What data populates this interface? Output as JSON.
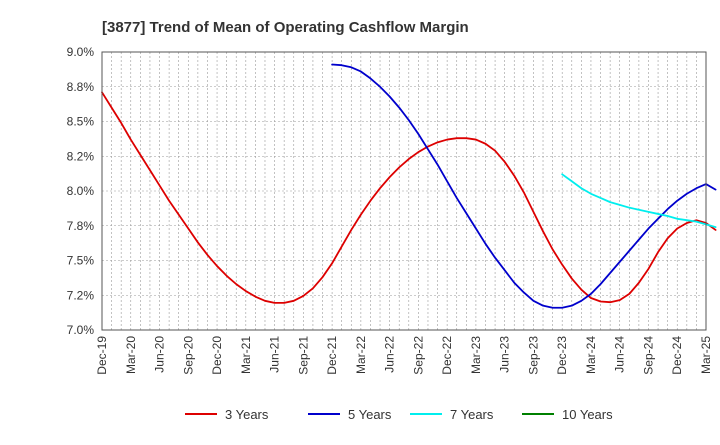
{
  "chart_data": {
    "type": "line",
    "title": "[3877]  Trend of Mean of Operating Cashflow Margin",
    "xlabel": "",
    "ylabel": "",
    "x_ticks": [
      "Dec-19",
      "Mar-20",
      "Jun-20",
      "Sep-20",
      "Dec-20",
      "Mar-21",
      "Jun-21",
      "Sep-21",
      "Dec-21",
      "Mar-22",
      "Jun-22",
      "Sep-22",
      "Dec-22",
      "Mar-23",
      "Jun-23",
      "Sep-23",
      "Dec-23",
      "Mar-24",
      "Jun-24",
      "Sep-24",
      "Dec-24",
      "Mar-25"
    ],
    "y_ticks": [
      "7.0%",
      "7.2%",
      "7.5%",
      "7.8%",
      "8.0%",
      "8.2%",
      "8.5%",
      "8.8%",
      "9.0%"
    ],
    "ylim": [
      7.0,
      9.0
    ],
    "grid": true,
    "legend_position": "bottom",
    "series": [
      {
        "name": "3 Years",
        "color": "#dd0000",
        "points": [
          [
            "Dec-19",
            8.71
          ],
          [
            "Jan-20",
            8.6
          ],
          [
            "Feb-20",
            8.49
          ],
          [
            "Mar-20",
            8.37
          ],
          [
            "Apr-20",
            8.26
          ],
          [
            "May-20",
            8.15
          ],
          [
            "Jun-20",
            8.04
          ],
          [
            "Jul-20",
            7.93
          ],
          [
            "Aug-20",
            7.83
          ],
          [
            "Sep-20",
            7.73
          ],
          [
            "Oct-20",
            7.63
          ],
          [
            "Nov-20",
            7.54
          ],
          [
            "Dec-20",
            7.46
          ],
          [
            "Jan-21",
            7.39
          ],
          [
            "Feb-21",
            7.33
          ],
          [
            "Mar-21",
            7.28
          ],
          [
            "Apr-21",
            7.24
          ],
          [
            "May-21",
            7.21
          ],
          [
            "Jun-21",
            7.195
          ],
          [
            "Jul-21",
            7.195
          ],
          [
            "Aug-21",
            7.21
          ],
          [
            "Sep-21",
            7.245
          ],
          [
            "Oct-21",
            7.3
          ],
          [
            "Nov-21",
            7.38
          ],
          [
            "Dec-21",
            7.48
          ],
          [
            "Jan-22",
            7.6
          ],
          [
            "Feb-22",
            7.72
          ],
          [
            "Mar-22",
            7.83
          ],
          [
            "Apr-22",
            7.93
          ],
          [
            "May-22",
            8.02
          ],
          [
            "Jun-22",
            8.1
          ],
          [
            "Jul-22",
            8.17
          ],
          [
            "Aug-22",
            8.23
          ],
          [
            "Sep-22",
            8.28
          ],
          [
            "Oct-22",
            8.32
          ],
          [
            "Nov-22",
            8.35
          ],
          [
            "Dec-22",
            8.37
          ],
          [
            "Jan-23",
            8.38
          ],
          [
            "Feb-23",
            8.38
          ],
          [
            "Mar-23",
            8.37
          ],
          [
            "Apr-23",
            8.34
          ],
          [
            "May-23",
            8.29
          ],
          [
            "Jun-23",
            8.21
          ],
          [
            "Jul-23",
            8.11
          ],
          [
            "Aug-23",
            7.99
          ],
          [
            "Sep-23",
            7.85
          ],
          [
            "Oct-23",
            7.71
          ],
          [
            "Nov-23",
            7.58
          ],
          [
            "Dec-23",
            7.47
          ],
          [
            "Jan-24",
            7.37
          ],
          [
            "Feb-24",
            7.29
          ],
          [
            "Mar-24",
            7.23
          ],
          [
            "Apr-24",
            7.205
          ],
          [
            "May-24",
            7.2
          ],
          [
            "Jun-24",
            7.215
          ],
          [
            "Jul-24",
            7.26
          ],
          [
            "Aug-24",
            7.34
          ],
          [
            "Sep-24",
            7.44
          ],
          [
            "Oct-24",
            7.56
          ],
          [
            "Nov-24",
            7.66
          ],
          [
            "Dec-24",
            7.73
          ],
          [
            "Jan-25",
            7.77
          ],
          [
            "Feb-25",
            7.79
          ],
          [
            "Mar-25",
            7.77
          ],
          [
            "Apr-25",
            7.72
          ]
        ]
      },
      {
        "name": "5 Years",
        "color": "#0000cc",
        "points": [
          [
            "Dec-21",
            8.91
          ],
          [
            "Jan-22",
            8.905
          ],
          [
            "Feb-22",
            8.89
          ],
          [
            "Mar-22",
            8.86
          ],
          [
            "Apr-22",
            8.81
          ],
          [
            "May-22",
            8.75
          ],
          [
            "Jun-22",
            8.68
          ],
          [
            "Jul-22",
            8.6
          ],
          [
            "Aug-22",
            8.51
          ],
          [
            "Sep-22",
            8.41
          ],
          [
            "Oct-22",
            8.3
          ],
          [
            "Nov-22",
            8.19
          ],
          [
            "Dec-22",
            8.07
          ],
          [
            "Jan-23",
            7.95
          ],
          [
            "Feb-23",
            7.84
          ],
          [
            "Mar-23",
            7.73
          ],
          [
            "Apr-23",
            7.62
          ],
          [
            "May-23",
            7.52
          ],
          [
            "Jun-23",
            7.43
          ],
          [
            "Jul-23",
            7.34
          ],
          [
            "Aug-23",
            7.27
          ],
          [
            "Sep-23",
            7.21
          ],
          [
            "Oct-23",
            7.175
          ],
          [
            "Nov-23",
            7.16
          ],
          [
            "Dec-23",
            7.16
          ],
          [
            "Jan-24",
            7.175
          ],
          [
            "Feb-24",
            7.21
          ],
          [
            "Mar-24",
            7.26
          ],
          [
            "Apr-24",
            7.33
          ],
          [
            "May-24",
            7.41
          ],
          [
            "Jun-24",
            7.49
          ],
          [
            "Jul-24",
            7.57
          ],
          [
            "Aug-24",
            7.65
          ],
          [
            "Sep-24",
            7.73
          ],
          [
            "Oct-24",
            7.8
          ],
          [
            "Nov-24",
            7.87
          ],
          [
            "Dec-24",
            7.93
          ],
          [
            "Jan-25",
            7.98
          ],
          [
            "Feb-25",
            8.02
          ],
          [
            "Mar-25",
            8.05
          ],
          [
            "Apr-25",
            8.01
          ]
        ]
      },
      {
        "name": "7 Years",
        "color": "#00eeee",
        "points": [
          [
            "Dec-23",
            8.12
          ],
          [
            "Jan-24",
            8.07
          ],
          [
            "Feb-24",
            8.02
          ],
          [
            "Mar-24",
            7.98
          ],
          [
            "Apr-24",
            7.95
          ],
          [
            "May-24",
            7.92
          ],
          [
            "Jun-24",
            7.9
          ],
          [
            "Jul-24",
            7.88
          ],
          [
            "Aug-24",
            7.865
          ],
          [
            "Sep-24",
            7.85
          ],
          [
            "Oct-24",
            7.835
          ],
          [
            "Nov-24",
            7.82
          ],
          [
            "Dec-24",
            7.8
          ],
          [
            "Jan-25",
            7.79
          ],
          [
            "Feb-25",
            7.78
          ],
          [
            "Mar-25",
            7.76
          ],
          [
            "Apr-25",
            7.74
          ]
        ]
      },
      {
        "name": "10 Years",
        "color": "#008000",
        "points": []
      }
    ]
  }
}
